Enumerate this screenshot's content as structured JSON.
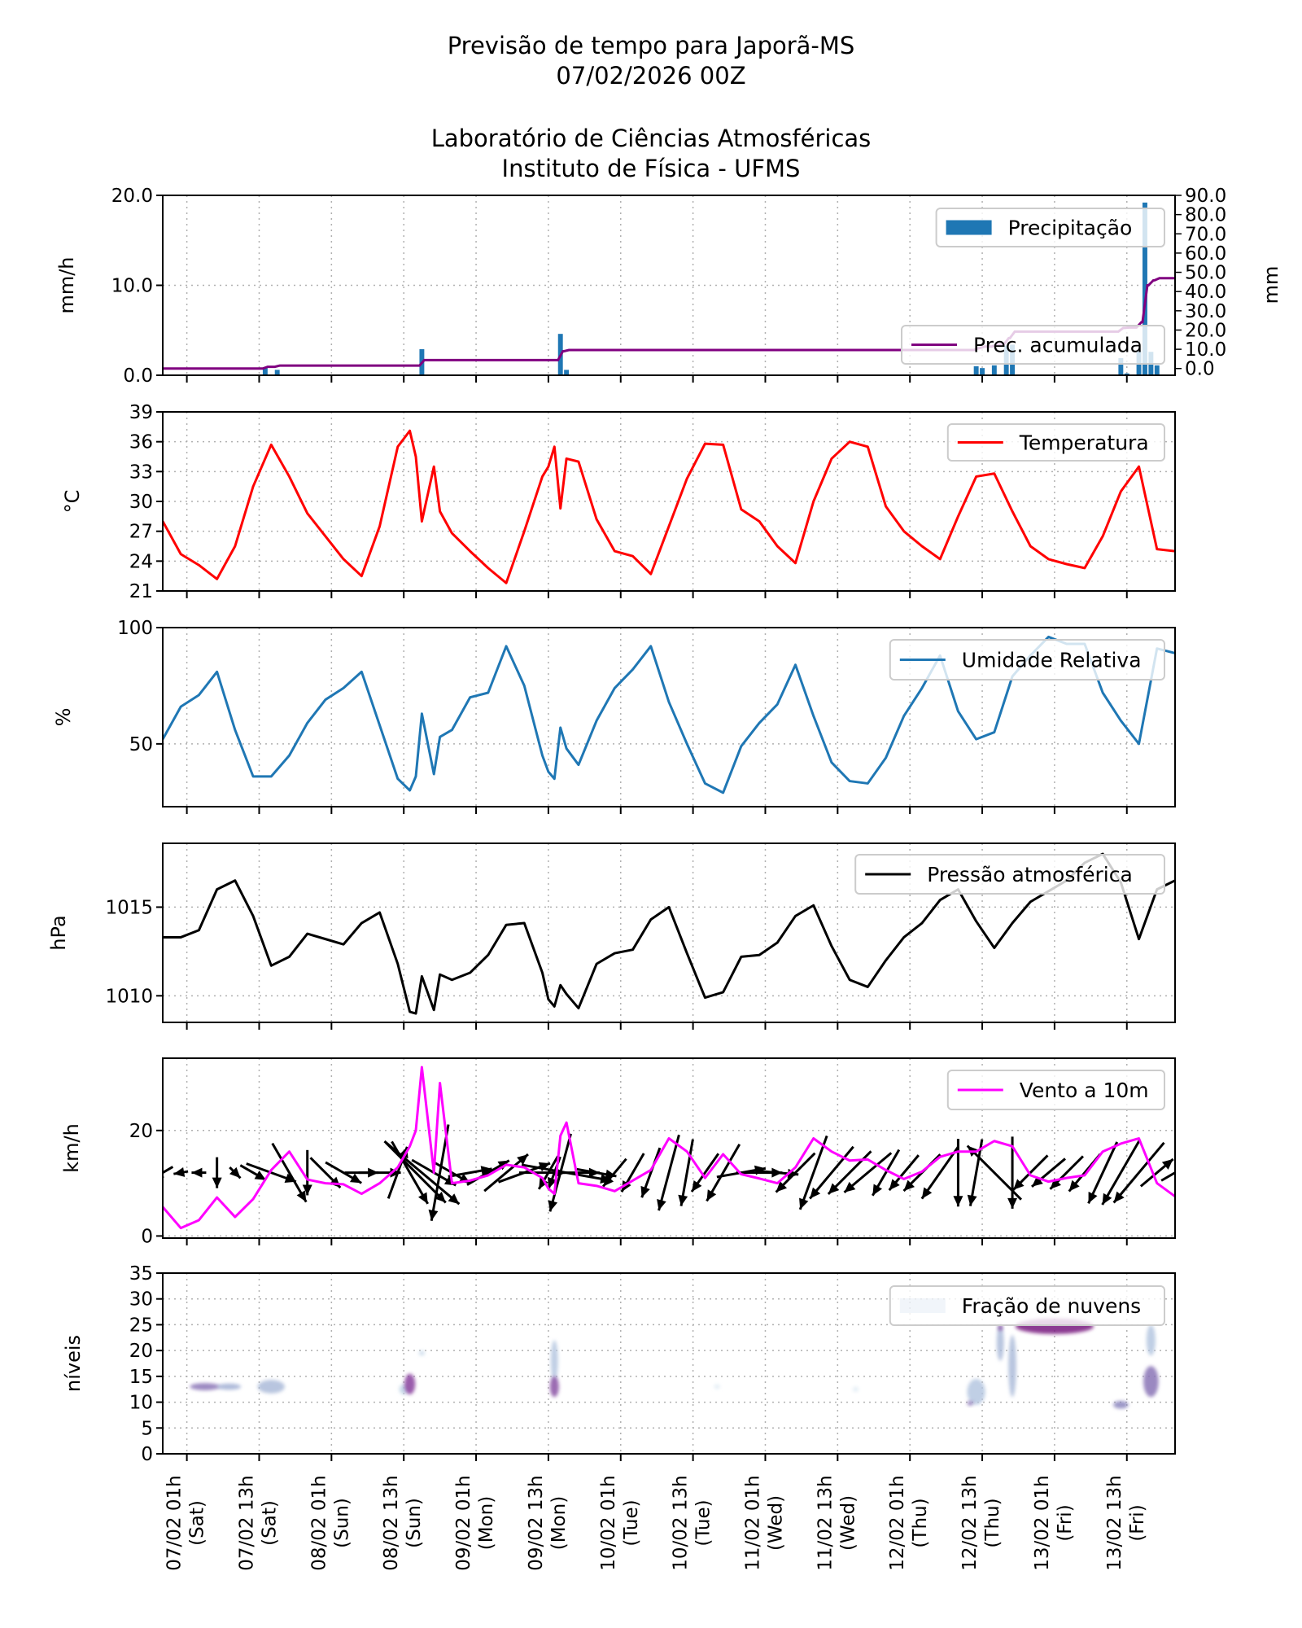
{
  "title": {
    "line1": "Previsão de tempo para Japorã-MS",
    "line2": "07/02/2026 00Z",
    "line3": "Laboratório de Ciências Atmosféricas",
    "line4": "Instituto de Física - UFMS"
  },
  "time_axis": {
    "xlim": [
      "06/02 21h",
      "13/02 21h"
    ],
    "ticks": [
      {
        "label": "07/02 01h",
        "day": "(Sat)"
      },
      {
        "label": "07/02 13h",
        "day": "(Sat)"
      },
      {
        "label": "08/02 01h",
        "day": "(Sun)"
      },
      {
        "label": "08/02 13h",
        "day": "(Sun)"
      },
      {
        "label": "09/02 01h",
        "day": "(Mon)"
      },
      {
        "label": "09/02 13h",
        "day": "(Mon)"
      },
      {
        "label": "10/02 01h",
        "day": "(Tue)"
      },
      {
        "label": "10/02 13h",
        "day": "(Tue)"
      },
      {
        "label": "11/02 01h",
        "day": "(Wed)"
      },
      {
        "label": "11/02 13h",
        "day": "(Wed)"
      },
      {
        "label": "12/02 01h",
        "day": "(Thu)"
      },
      {
        "label": "12/02 13h",
        "day": "(Thu)"
      },
      {
        "label": "13/02 01h",
        "day": "(Fri)"
      },
      {
        "label": "13/02 13h",
        "day": "(Fri)"
      }
    ],
    "times": [
      "06/02 21h",
      "07/02 00h",
      "07/02 03h",
      "07/02 06h",
      "07/02 09h",
      "07/02 12h",
      "07/02 15h",
      "07/02 18h",
      "07/02 21h",
      "08/02 00h",
      "08/02 03h",
      "08/02 06h",
      "08/02 09h",
      "08/02 12h",
      "08/02 14h",
      "08/02 15h",
      "08/02 16h",
      "08/02 18h",
      "08/02 19h",
      "08/02 21h",
      "09/02 00h",
      "09/02 03h",
      "09/02 06h",
      "09/02 09h",
      "09/02 12h",
      "09/02 13h",
      "09/02 14h",
      "09/02 15h",
      "09/02 16h",
      "09/02 18h",
      "09/02 21h",
      "10/02 00h",
      "10/02 03h",
      "10/02 06h",
      "10/02 09h",
      "10/02 12h",
      "10/02 15h",
      "10/02 18h",
      "10/02 21h",
      "11/02 00h",
      "11/02 03h",
      "11/02 06h",
      "11/02 09h",
      "11/02 12h",
      "11/02 15h",
      "11/02 18h",
      "11/02 21h",
      "12/02 00h",
      "12/02 03h",
      "12/02 06h",
      "12/02 09h",
      "12/02 12h",
      "12/02 15h",
      "12/02 18h",
      "12/02 21h",
      "13/02 00h",
      "13/02 03h",
      "13/02 06h",
      "13/02 09h",
      "13/02 12h",
      "13/02 15h",
      "13/02 18h",
      "13/02 21h"
    ],
    "grid": true
  },
  "chart_data": [
    {
      "type": "bar",
      "ylabel": "mm/h",
      "ylim": [
        0,
        20
      ],
      "yticks": [
        "0.0",
        "10.0",
        "20.0"
      ],
      "series": [
        {
          "name": "Precipitação",
          "color": "#1f77b4",
          "times": [
            "07/02 14h",
            "07/02 16h",
            "08/02 16h",
            "09/02 15h",
            "09/02 16h",
            "12/02 12h",
            "12/02 13h",
            "12/02 15h",
            "12/02 17h",
            "12/02 18h",
            "13/02 12h",
            "13/02 13h",
            "13/02 15h",
            "13/02 16h",
            "13/02 17h",
            "13/02 18h"
          ],
          "values": [
            0.9,
            0.6,
            2.9,
            4.6,
            0.6,
            1.0,
            0.8,
            1.1,
            3.3,
            3.4,
            1.9,
            0.2,
            2.75,
            19.2,
            2.6,
            1.1
          ]
        }
      ],
      "right_axis": {
        "ylabel": "mm",
        "ylim": [
          -3.5,
          90
        ],
        "yticks": [
          "0.0",
          "10.0",
          "20.0",
          "30.0",
          "40.0",
          "50.0",
          "60.0",
          "70.0",
          "80.0",
          "90.0"
        ],
        "series_name": "Prec. acumulada",
        "color": "#800080",
        "accumulation_of": "Precipitação"
      },
      "legend": "top-right"
    },
    {
      "type": "line",
      "ylabel": "°C",
      "ylim": [
        21,
        39
      ],
      "yticks": [
        "21",
        "24",
        "27",
        "30",
        "33",
        "36",
        "39"
      ],
      "series": [
        {
          "name": "Temperatura",
          "color": "#ff0000",
          "values": [
            28,
            24.7,
            23.6,
            22.2,
            25.5,
            31.5,
            35.7,
            32.5,
            28.8,
            26.5,
            24.2,
            22.5,
            27.5,
            35.5,
            37.1,
            34.5,
            28,
            33.5,
            29,
            26.8,
            25,
            23.3,
            21.8,
            27,
            32.5,
            33.5,
            35.5,
            29.3,
            34.3,
            34,
            28.2,
            25,
            24.5,
            22.7,
            27.5,
            32.3,
            35.8,
            35.7,
            29.2,
            28,
            25.5,
            23.8,
            30,
            34.3,
            36,
            35.5,
            29.5,
            27,
            25.5,
            24.2,
            28.5,
            32.5,
            32.8,
            29,
            25.5,
            24.2,
            23.7,
            23.3,
            26.5,
            31,
            33.5,
            25.2,
            25
          ]
        }
      ],
      "legend": "top-right"
    },
    {
      "type": "line",
      "ylabel": "%",
      "ylim": [
        23,
        100
      ],
      "yticks": [
        "50",
        "100"
      ],
      "series": [
        {
          "name": "Umidade Relativa",
          "color": "#1f77b4",
          "values": [
            52,
            66,
            71,
            81,
            56,
            36,
            36,
            45,
            59,
            69,
            74,
            81,
            58,
            35,
            30,
            36,
            63,
            37,
            53,
            56,
            70,
            72,
            92,
            75,
            45,
            38,
            35,
            57,
            48,
            41,
            60,
            74,
            82,
            92,
            68,
            50,
            33,
            29,
            49,
            59,
            67,
            84,
            62,
            42,
            34,
            33,
            44,
            62,
            74,
            88,
            64,
            52,
            55,
            79,
            88,
            96,
            93,
            93,
            72,
            60,
            50,
            91,
            89
          ]
        }
      ],
      "legend": "top-right"
    },
    {
      "type": "line",
      "ylabel": "hPa",
      "ylim": [
        1008.5,
        1018.6
      ],
      "yticks": [
        "1010",
        "1015"
      ],
      "series": [
        {
          "name": "Pressão atmosférica",
          "color": "#000000",
          "values": [
            1013.3,
            1013.3,
            1013.7,
            1016,
            1016.5,
            1014.5,
            1011.7,
            1012.2,
            1013.5,
            1013.2,
            1012.9,
            1014.1,
            1014.7,
            1011.8,
            1009.1,
            1009.0,
            1011.1,
            1009.2,
            1011.2,
            1010.9,
            1011.3,
            1012.3,
            1014,
            1014.1,
            1011.3,
            1009.8,
            1009.4,
            1010.6,
            1010.1,
            1009.3,
            1011.8,
            1012.4,
            1012.6,
            1014.3,
            1015,
            1012.4,
            1009.9,
            1010.2,
            1012.2,
            1012.3,
            1013,
            1014.5,
            1015.1,
            1012.8,
            1010.9,
            1010.5,
            1012,
            1013.3,
            1014.1,
            1015.4,
            1016,
            1014.2,
            1012.7,
            1014.1,
            1015.3,
            1015.9,
            1016.5,
            1017.5,
            1018,
            1016.4,
            1013.2,
            1016,
            1016.5
          ]
        }
      ],
      "legend": "top-right"
    },
    {
      "type": "line",
      "ylabel": "km/h",
      "ylim": [
        -0.4,
        33.7
      ],
      "yticks": [
        "0",
        "20"
      ],
      "series": [
        {
          "name": "Vento a 10m",
          "color": "#ff00ff",
          "values": [
            5.5,
            1.5,
            3,
            7.3,
            3.6,
            7,
            12.5,
            16,
            10.7,
            10,
            9.8,
            8,
            10,
            13,
            17,
            20,
            32,
            12,
            29,
            10,
            10.5,
            11.5,
            13.5,
            13,
            11,
            9,
            8,
            19,
            21.5,
            10,
            9.5,
            8.5,
            10.5,
            12.5,
            18.5,
            16,
            11,
            15.5,
            11.7,
            10.9,
            10,
            13,
            18.5,
            16,
            14.3,
            14.5,
            12.5,
            10.8,
            12.2,
            15,
            16,
            16,
            18,
            17,
            11.5,
            10.3,
            11,
            11.5,
            16,
            17.5,
            18.5,
            10,
            7.5
          ]
        }
      ],
      "wind_direction_deg": [
        60,
        80,
        90,
        0,
        315,
        300,
        290,
        330,
        0,
        315,
        300,
        270,
        270,
        200,
        330,
        315,
        310,
        300,
        10,
        300,
        260,
        240,
        230,
        250,
        270,
        30,
        20,
        15,
        280,
        270,
        280,
        40,
        30,
        20,
        15,
        10,
        35,
        30,
        260,
        270,
        275,
        45,
        20,
        40,
        45,
        50,
        30,
        40,
        45,
        35,
        0,
        10,
        135,
        0,
        45,
        50,
        45,
        40,
        25,
        30,
        40,
        230,
        240
      ],
      "arrow_color": "#000000",
      "legend": "top-right"
    },
    {
      "type": "heatmap",
      "ylabel": "níveis",
      "ylim": [
        0,
        35
      ],
      "yticks": [
        "0",
        "5",
        "10",
        "15",
        "20",
        "25",
        "30",
        "35"
      ],
      "series_name": "Fração de nuvens",
      "colormap": [
        "#f7fcfd",
        "#bfd3e6",
        "#8c96c6",
        "#88419d",
        "#6e016b"
      ],
      "cloud_patches": [
        {
          "time": "07/02 04h",
          "level": 13,
          "span_h": 5,
          "span_levels": 1.4,
          "fraction": 0.6
        },
        {
          "time": "07/02 08h",
          "level": 13,
          "span_h": 4,
          "span_levels": 1.2,
          "fraction": 0.4
        },
        {
          "time": "07/02 15h",
          "level": 13,
          "span_h": 4.5,
          "span_levels": 2.6,
          "fraction": 0.35
        },
        {
          "time": "08/02 13h",
          "level": 12.5,
          "span_h": 1.5,
          "span_levels": 2,
          "fraction": 0.25
        },
        {
          "time": "08/02 14h",
          "level": 13.5,
          "span_h": 1.8,
          "span_levels": 4,
          "fraction": 0.75
        },
        {
          "time": "08/02 16h",
          "level": 19.5,
          "span_h": 1,
          "span_levels": 1,
          "fraction": 0.2
        },
        {
          "time": "09/02 14h",
          "level": 18,
          "span_h": 1.2,
          "span_levels": 8,
          "fraction": 0.3
        },
        {
          "time": "09/02 14h",
          "level": 13,
          "span_h": 1.5,
          "span_levels": 4,
          "fraction": 0.7
        },
        {
          "time": "10/02 17h",
          "level": 13,
          "span_h": 1,
          "span_levels": 0.6,
          "fraction": 0.1
        },
        {
          "time": "11/02 16h",
          "level": 12.5,
          "span_h": 1,
          "span_levels": 1,
          "fraction": 0.1
        },
        {
          "time": "12/02 12h",
          "level": 12,
          "span_h": 3,
          "span_levels": 5,
          "fraction": 0.3
        },
        {
          "time": "12/02 11h",
          "level": 9.8,
          "span_h": 1,
          "span_levels": 0.8,
          "fraction": 0.6
        },
        {
          "time": "12/02 16h",
          "level": 21.5,
          "span_h": 1.2,
          "span_levels": 7,
          "fraction": 0.35
        },
        {
          "time": "12/02 16h",
          "level": 24.4,
          "span_h": 0.8,
          "span_levels": 1.2,
          "fraction": 0.7
        },
        {
          "time": "12/02 18h",
          "level": 17,
          "span_h": 1.3,
          "span_levels": 12,
          "fraction": 0.35
        },
        {
          "time": "13/02 01h",
          "level": 24.7,
          "span_h": 13,
          "span_levels": 3,
          "fraction": 0.9
        },
        {
          "time": "13/02 12h",
          "level": 9.5,
          "span_h": 2.5,
          "span_levels": 1.5,
          "fraction": 0.55
        },
        {
          "time": "13/02 17h",
          "level": 14,
          "span_h": 2.5,
          "span_levels": 6,
          "fraction": 0.6
        },
        {
          "time": "13/02 17h",
          "level": 22,
          "span_h": 1.5,
          "span_levels": 6,
          "fraction": 0.3
        }
      ],
      "legend": "top-right"
    }
  ]
}
